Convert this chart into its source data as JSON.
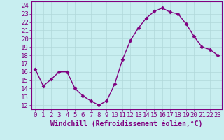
{
  "x": [
    0,
    1,
    2,
    3,
    4,
    5,
    6,
    7,
    8,
    9,
    10,
    11,
    12,
    13,
    14,
    15,
    16,
    17,
    18,
    19,
    20,
    21,
    22,
    23
  ],
  "y": [
    16.3,
    14.3,
    15.1,
    16.0,
    16.0,
    14.0,
    13.1,
    12.5,
    12.0,
    12.5,
    14.5,
    17.5,
    19.8,
    21.3,
    22.5,
    23.3,
    23.7,
    23.2,
    23.0,
    21.8,
    20.3,
    19.0,
    18.7,
    18.0
  ],
  "line_color": "#800080",
  "marker": "D",
  "markersize": 2.5,
  "linewidth": 1.0,
  "bg_color": "#c8eef0",
  "grid_color": "#b0d8da",
  "xlabel": "Windchill (Refroidissement éolien,°C)",
  "xlabel_fontsize": 7,
  "yticks": [
    12,
    13,
    14,
    15,
    16,
    17,
    18,
    19,
    20,
    21,
    22,
    23,
    24
  ],
  "xticks": [
    0,
    1,
    2,
    3,
    4,
    5,
    6,
    7,
    8,
    9,
    10,
    11,
    12,
    13,
    14,
    15,
    16,
    17,
    18,
    19,
    20,
    21,
    22,
    23
  ],
  "ylim": [
    11.5,
    24.5
  ],
  "xlim": [
    -0.5,
    23.5
  ],
  "tick_fontsize": 6.5,
  "tick_color": "#800080",
  "axis_color": "#800080",
  "spine_color": "#800080"
}
